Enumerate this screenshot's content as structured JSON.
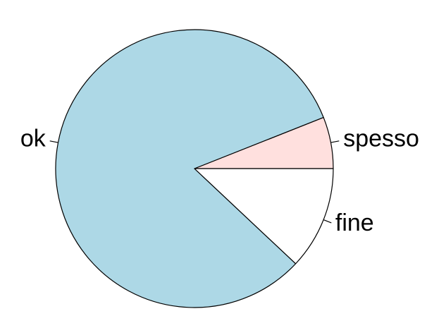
{
  "chart_data": {
    "type": "pie",
    "labels": [
      "spesso",
      "ok",
      "fine"
    ],
    "values": [
      6,
      82,
      12
    ],
    "colors": [
      "#ffe0de",
      "#add8e6",
      "#ffffff"
    ],
    "start_angle_deg": 0,
    "direction": "counterclockwise",
    "border_color": "#000000",
    "title": "",
    "legend": "none"
  }
}
